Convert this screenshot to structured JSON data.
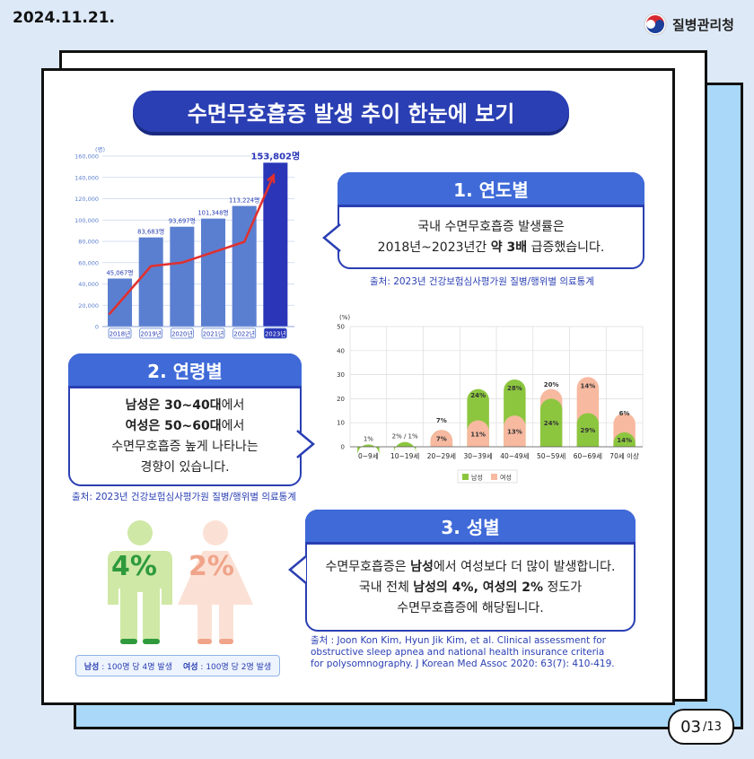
{
  "header": {
    "date": "2024.11.21.",
    "org": "질병관리청"
  },
  "title": "수면무호흡증 발생 추이 한눈에 보기",
  "section1": {
    "heading": "1. 연도별",
    "line1": "국내 수면무호흡증 발생률은",
    "line2_pre": "2018년~2023년간 ",
    "line2_bold": "약 3배",
    "line2_post": " 급증했습니다.",
    "source": "출처: 2023년 건강보험심사평가원 질병/행위별 의료통계"
  },
  "section2": {
    "heading": "2. 연령별",
    "line1_bold": "남성은 30~40대",
    "line1_post": "에서",
    "line2_bold": "여성은 50~60대",
    "line2_post": "에서",
    "line3": "수면무호흡증 높게 나타나는",
    "line4": "경향이 있습니다.",
    "source": "출처: 2023년 건강보험심사평가원 질병/행위별 의료통계"
  },
  "section3": {
    "heading": "3. 성별",
    "line1_pre": "수면무호흡증은 ",
    "line1_bold": "남성",
    "line1_post": "에서 여성보다 더 많이 발생합니다.",
    "line2_pre": "국내 전체 ",
    "line2_bold": "남성의 4%, 여성의 2%",
    "line2_post": " 정도가",
    "line3": "수면무호흡증에 해당됩니다.",
    "source_lines": [
      "출처 : Joon Kon Kim, Hyun Jik Kim, et al. Clinical assessment for",
      "obstructive sleep apnea and national health insurance criteria",
      "for polysomnography. J Korean Med Assoc 2020: 63(7): 410-419."
    ],
    "male_pct": "4%",
    "female_pct": "2%",
    "legend_male_label": "남성",
    "legend_male_text": " : 100명 당 4명 발생",
    "legend_female_label": "여성",
    "legend_female_text": " : 100명 당 2명 발생",
    "colors": {
      "male": "#8cc63f",
      "female": "#f7c9b5",
      "male_text": "#2e9a3c",
      "female_text": "#f0a48a"
    }
  },
  "pagination": {
    "current": "03",
    "total": "/13"
  },
  "chart_data": [
    {
      "type": "bar",
      "unit_label": "(명)",
      "categories": [
        "2018년",
        "2019년",
        "2020년",
        "2021년",
        "2022년",
        "2023년"
      ],
      "values": [
        45067,
        83683,
        93697,
        101348,
        113224,
        153802
      ],
      "labels": [
        "45,067명",
        "83,683명",
        "93,697명",
        "101,348명",
        "113,224명",
        "153,802명"
      ],
      "ylim": [
        0,
        160000
      ],
      "yticks": [
        "0",
        "20,000",
        "40,000",
        "60,000",
        "80,000",
        "100,000",
        "120,000",
        "140,000",
        "160,000"
      ],
      "ytick_values": [
        0,
        20000,
        40000,
        60000,
        80000,
        100000,
        120000,
        140000,
        160000
      ],
      "trend_arrow": true,
      "colors": {
        "bar": "#5b7fd0",
        "highlight": "#2a35b8",
        "arrow": "#e0302e",
        "grid": "#c9d6ee"
      }
    },
    {
      "type": "bar",
      "unit_label": "(%)",
      "categories": [
        "0~9세",
        "10~19세",
        "20~29세",
        "30~39세",
        "40~49세",
        "50~59세",
        "60~69세",
        "70세 이상"
      ],
      "series": [
        {
          "name": "남성",
          "values": [
            1,
            2,
            7,
            24,
            28,
            20,
            14,
            6
          ],
          "color": "#8cc63f"
        },
        {
          "name": "여성",
          "values": [
            1,
            1,
            7,
            11,
            13,
            24,
            29,
            14
          ],
          "color": "#f7b9a0"
        }
      ],
      "bar_labels": [
        [
          "1%",
          ""
        ],
        [
          "2% / 1%",
          ""
        ],
        [
          "7%",
          "7%"
        ],
        [
          "24%",
          "11%"
        ],
        [
          "28%",
          "13%"
        ],
        [
          "20%",
          "24%"
        ],
        [
          "14%",
          "29%"
        ],
        [
          "6%",
          "14%"
        ]
      ],
      "ylim": [
        0,
        50
      ],
      "yticks": [
        "0",
        "10",
        "20",
        "30",
        "40",
        "50"
      ],
      "ytick_values": [
        0,
        10,
        20,
        30,
        40,
        50
      ],
      "legend": [
        "남성",
        "여성"
      ],
      "legend_position": "bottom"
    }
  ]
}
